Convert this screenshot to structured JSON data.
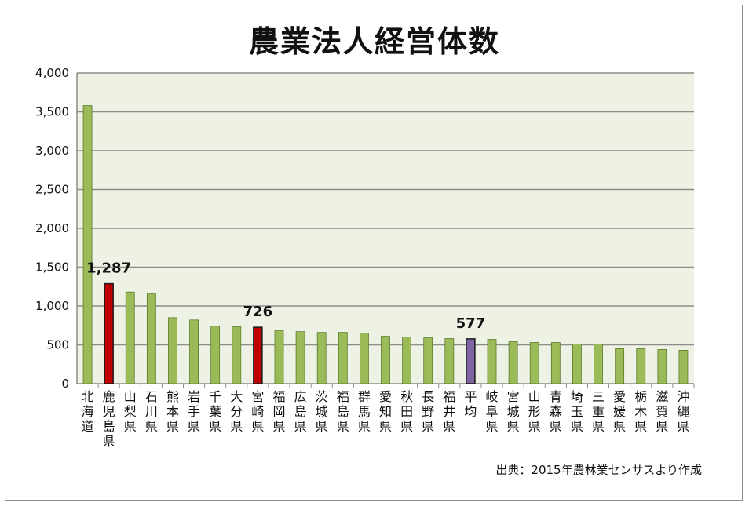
{
  "chart_data": {
    "type": "bar",
    "title": "農業法人経営体数",
    "source": "出典：2015年農林業センサスより作成",
    "ylim": [
      0,
      4000
    ],
    "yticks": [
      "0",
      "500",
      "1,000",
      "1,500",
      "2,000",
      "2,500",
      "3,000",
      "3,500",
      "4,000"
    ],
    "ytick_values": [
      0,
      500,
      1000,
      1500,
      2000,
      2500,
      3000,
      3500,
      4000
    ],
    "grid": true,
    "categories": [
      "北海道",
      "鹿児島県",
      "山梨県",
      "石川県",
      "熊本県",
      "岩手県",
      "千葉県",
      "大分県",
      "宮崎県",
      "福岡県",
      "広島県",
      "茨城県",
      "福島県",
      "群馬県",
      "愛知県",
      "秋田県",
      "長野県",
      "福井県",
      "平均",
      "岐阜県",
      "宮城県",
      "山形県",
      "青森県",
      "埼玉県",
      "三重県",
      "愛媛県",
      "栃木県",
      "滋賀県",
      "沖縄県"
    ],
    "values": [
      3580,
      1287,
      1180,
      1155,
      850,
      820,
      740,
      735,
      726,
      685,
      670,
      660,
      660,
      650,
      610,
      600,
      590,
      580,
      577,
      570,
      540,
      530,
      530,
      510,
      510,
      450,
      450,
      440,
      430
    ],
    "highlight": {
      "鹿児島県": {
        "color": "#c00000",
        "label": "1,287"
      },
      "宮崎県": {
        "color": "#c00000",
        "label": "726"
      },
      "平均": {
        "color": "#8064a2",
        "label": "577"
      }
    },
    "colors": {
      "default_bar": "#9bbb59",
      "default_bar_border": "#5a7a2a",
      "highlight_border": "#1a1a1a",
      "plot_bg": "#eef2e4",
      "grid": "#8c8c8c"
    }
  }
}
